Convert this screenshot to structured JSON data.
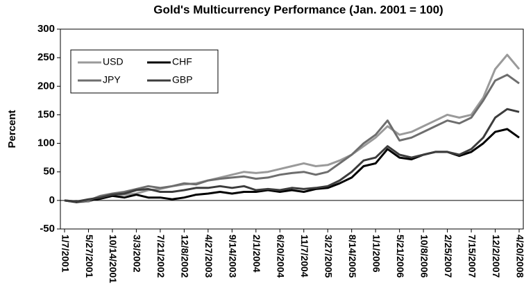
{
  "chart_data": {
    "type": "line",
    "title": "Gold's Multicurrency Performance (Jan. 2001 = 100)",
    "y_label": "Percent",
    "categories": [
      "1/7/2001",
      null,
      "5/27/2001",
      null,
      "10/14/2001",
      null,
      "3/3/2002",
      null,
      "7/21/2002",
      null,
      "12/8/2002",
      null,
      "4/27/2003",
      null,
      "9/14/2003",
      null,
      "2/1/2004",
      null,
      "6/20/2004",
      null,
      "11/7/2004",
      null,
      "3/27/2005",
      null,
      "8/14/2005",
      null,
      "1/1/2006",
      null,
      "5/21/2006",
      null,
      "10/8/2006",
      null,
      "2/25/2007",
      null,
      "7/15/2007",
      null,
      "12/2/2007",
      null,
      "4/20/2008"
    ],
    "series": [
      {
        "name": "USD",
        "color": "#9a9a9a",
        "values": [
          0,
          -3,
          -2,
          5,
          8,
          10,
          12,
          18,
          20,
          25,
          28,
          30,
          35,
          40,
          45,
          50,
          48,
          50,
          55,
          60,
          65,
          60,
          62,
          70,
          80,
          95,
          110,
          130,
          115,
          120,
          130,
          140,
          150,
          145,
          150,
          180,
          230,
          255,
          230
        ]
      },
      {
        "name": "CHF",
        "color": "#000000",
        "values": [
          0,
          -3,
          0,
          3,
          8,
          5,
          10,
          5,
          5,
          2,
          5,
          10,
          12,
          15,
          12,
          15,
          15,
          18,
          15,
          18,
          15,
          20,
          22,
          30,
          40,
          60,
          65,
          90,
          75,
          72,
          80,
          85,
          85,
          78,
          85,
          100,
          120,
          125,
          110
        ]
      },
      {
        "name": "JPY",
        "color": "#6e6e6e",
        "values": [
          0,
          -2,
          0,
          8,
          12,
          15,
          20,
          25,
          22,
          25,
          30,
          28,
          35,
          38,
          40,
          42,
          38,
          40,
          45,
          48,
          50,
          45,
          50,
          65,
          80,
          100,
          115,
          140,
          105,
          110,
          120,
          130,
          140,
          135,
          145,
          175,
          210,
          220,
          205
        ]
      },
      {
        "name": "GBP",
        "color": "#3c3c3c",
        "values": [
          0,
          -2,
          2,
          5,
          10,
          12,
          18,
          20,
          15,
          15,
          18,
          22,
          22,
          25,
          22,
          25,
          18,
          20,
          18,
          22,
          20,
          22,
          25,
          35,
          50,
          70,
          75,
          95,
          80,
          75,
          80,
          85,
          85,
          80,
          90,
          110,
          145,
          160,
          155
        ]
      }
    ],
    "ylim": [
      -50,
      300
    ],
    "yticks": [
      -50,
      0,
      50,
      100,
      150,
      200,
      250,
      300
    ],
    "legend": "upper left"
  }
}
